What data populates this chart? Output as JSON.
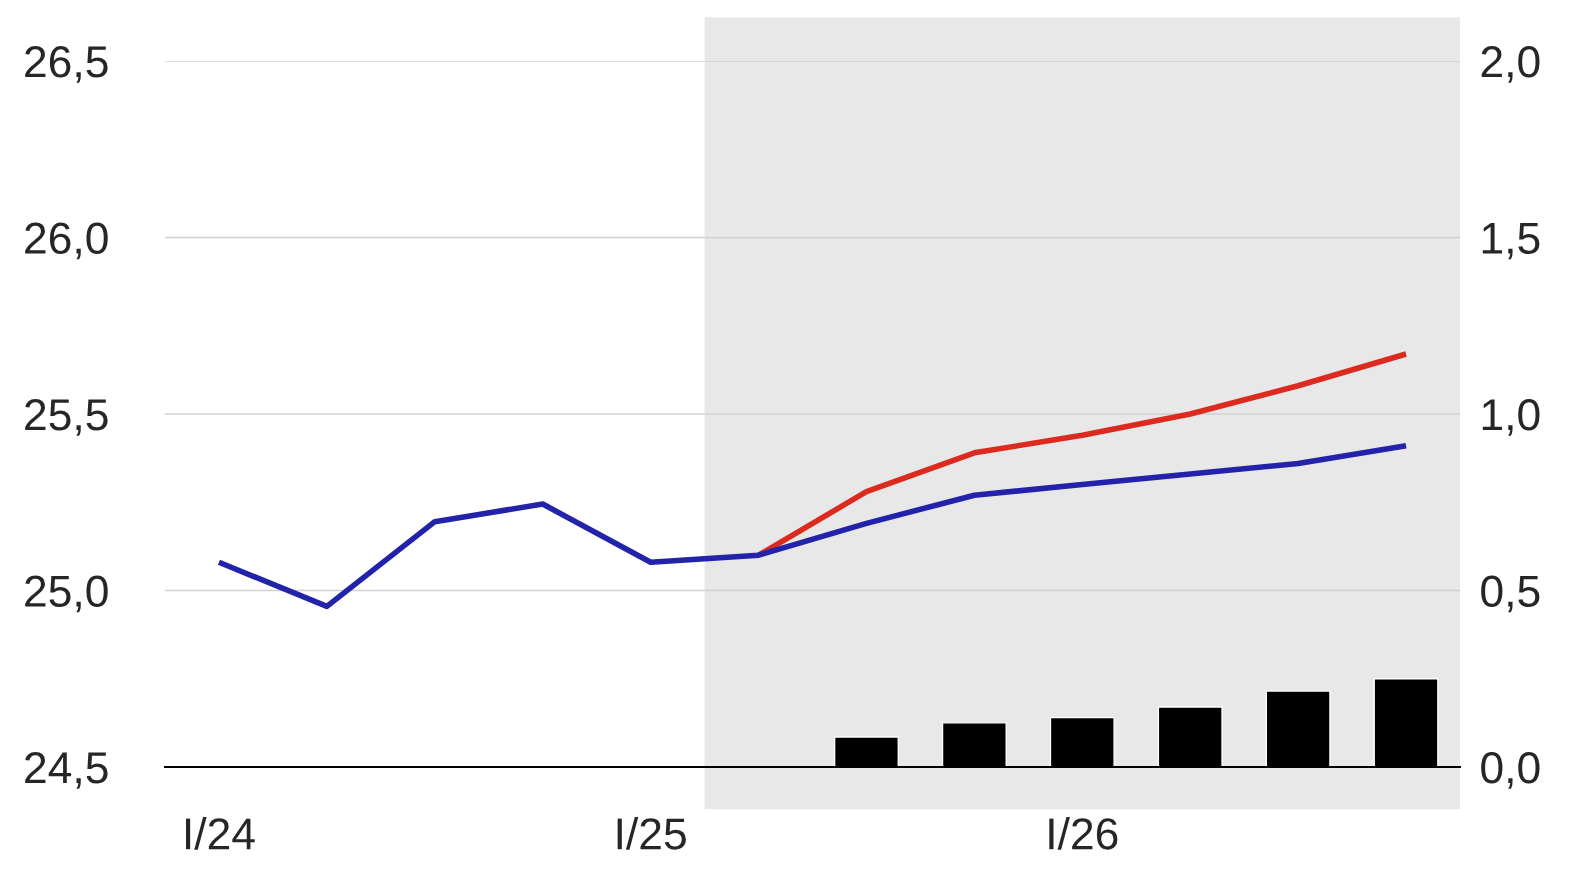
{
  "chart_data": {
    "type": "line",
    "categories": [
      "I/24",
      null,
      null,
      null,
      "I/25",
      null,
      null,
      null,
      "I/26",
      null,
      null,
      null
    ],
    "ylim": [
      24.5,
      26.5
    ],
    "yticks": [
      {
        "value": 24.5,
        "label": "24,5"
      },
      {
        "value": 25.0,
        "label": "25,0"
      },
      {
        "value": 25.5,
        "label": "25,5"
      },
      {
        "value": 26.0,
        "label": "26,0"
      },
      {
        "value": 26.5,
        "label": "26,5"
      }
    ],
    "y2lim": [
      0,
      2
    ],
    "y2ticks": [
      {
        "value": 0,
        "label": "0,0"
      },
      {
        "value": 0.5,
        "label": "0,5"
      },
      {
        "value": 1.0,
        "label": "1,0"
      },
      {
        "value": 1.5,
        "label": "1,5"
      },
      {
        "value": 2.0,
        "label": "2,0"
      }
    ],
    "grid": "y",
    "series": [
      {
        "type": "bar",
        "axis": "y2",
        "color": "#000000",
        "values": [
          null,
          null,
          null,
          null,
          null,
          null,
          0.085,
          0.125,
          0.14,
          0.17,
          0.215,
          0.25
        ]
      },
      {
        "color": "#dd2a1e",
        "values": [
          null,
          null,
          null,
          null,
          null,
          25.1,
          25.28,
          25.39,
          25.44,
          25.5,
          25.58,
          25.67
        ]
      },
      {
        "color": "#2222aa",
        "values": [
          25.08,
          24.955,
          25.195,
          25.245,
          25.08,
          25.1,
          25.19,
          25.27,
          25.3,
          25.33,
          25.36,
          25.41
        ]
      }
    ]
  }
}
